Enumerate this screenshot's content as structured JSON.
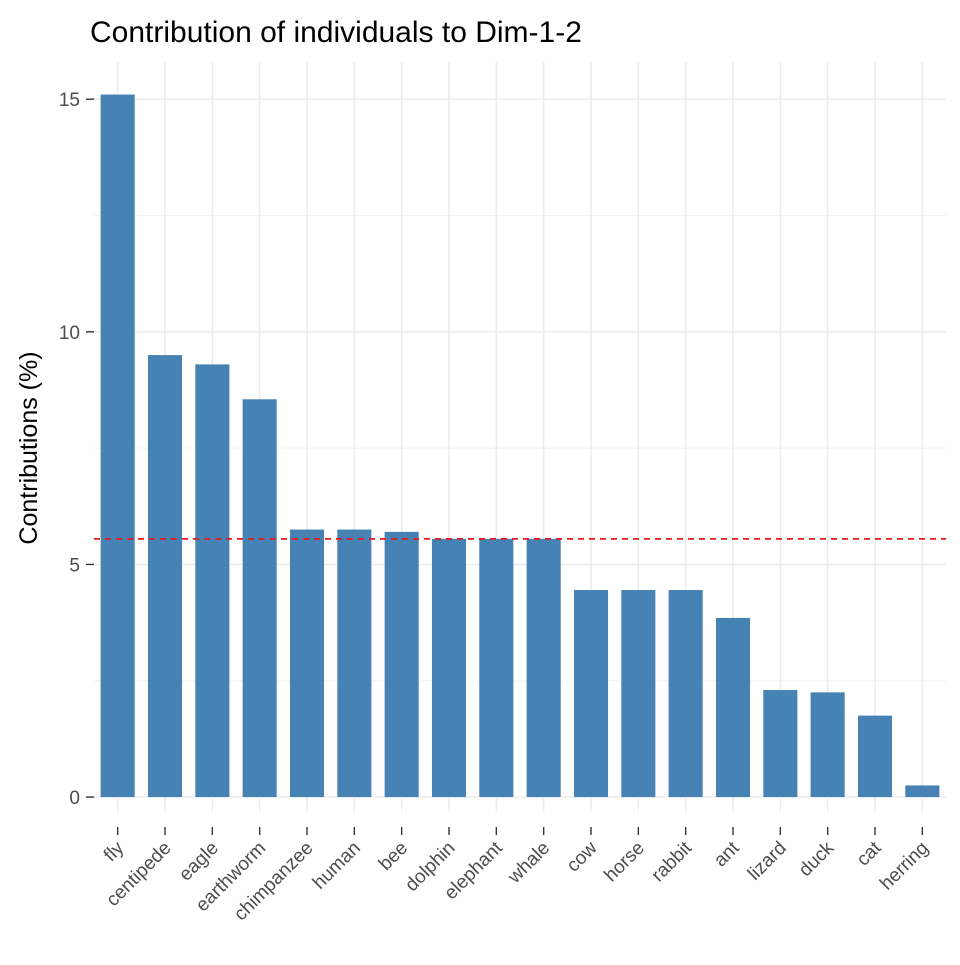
{
  "chart_data": {
    "type": "bar",
    "title": "Contribution of individuals to Dim-1-2",
    "xlabel": "",
    "ylabel": "Contributions (%)",
    "ylim": [
      -0.3,
      15.8
    ],
    "yticks": [
      0,
      5,
      10,
      15
    ],
    "categories": [
      "fly",
      "centipede",
      "eagle",
      "earthworm",
      "chimpanzee",
      "human",
      "bee",
      "dolphin",
      "elephant",
      "whale",
      "cow",
      "horse",
      "rabbit",
      "ant",
      "lizard",
      "duck",
      "cat",
      "herring"
    ],
    "values": [
      15.1,
      9.5,
      9.3,
      8.55,
      5.75,
      5.75,
      5.7,
      5.55,
      5.55,
      5.55,
      4.45,
      4.45,
      4.45,
      3.85,
      2.3,
      2.25,
      1.75,
      0.25
    ],
    "reference_line": {
      "value": 5.55,
      "style": "dashed",
      "color": "#e41a1c"
    },
    "bar_color": "#4682b4",
    "grid": true,
    "legend": "none",
    "x_tick_rotation_deg": 45
  }
}
